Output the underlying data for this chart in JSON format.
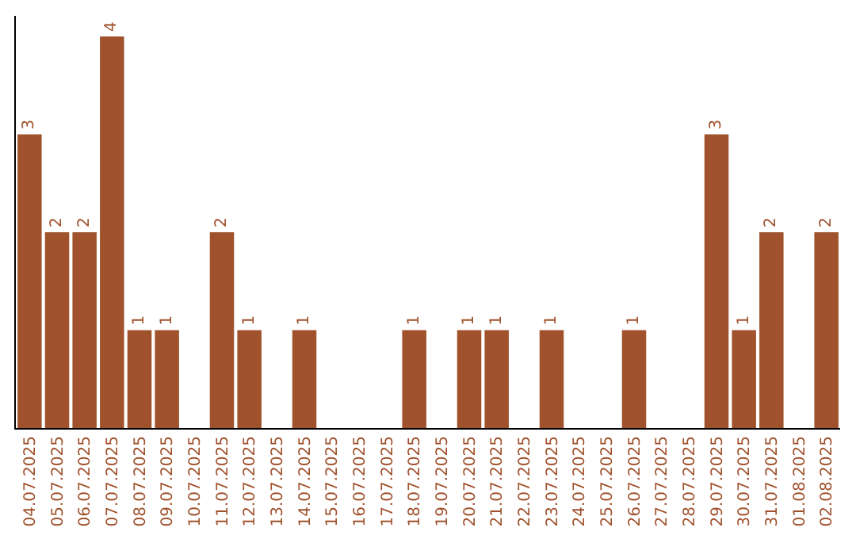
{
  "chart_data": {
    "type": "bar",
    "categories": [
      "04.07.2025",
      "05.07.2025",
      "06.07.2025",
      "07.07.2025",
      "08.07.2025",
      "09.07.2025",
      "10.07.2025",
      "11.07.2025",
      "12.07.2025",
      "13.07.2025",
      "14.07.2025",
      "15.07.2025",
      "16.07.2025",
      "17.07.2025",
      "18.07.2025",
      "19.07.2025",
      "20.07.2025",
      "21.07.2025",
      "22.07.2025",
      "23.07.2025",
      "24.07.2025",
      "25.07.2025",
      "26.07.2025",
      "27.07.2025",
      "28.07.2025",
      "29.07.2025",
      "30.07.2025",
      "31.07.2025",
      "01.08.2025",
      "02.08.2025"
    ],
    "values": [
      3,
      2,
      2,
      4,
      1,
      1,
      0,
      2,
      1,
      0,
      1,
      0,
      0,
      0,
      1,
      0,
      1,
      1,
      0,
      1,
      0,
      0,
      1,
      0,
      0,
      3,
      1,
      2,
      0,
      2
    ],
    "value_labels": [
      "3",
      "2",
      "2",
      "4",
      "1",
      "1",
      null,
      "2",
      "1",
      null,
      "1",
      null,
      null,
      null,
      "1",
      null,
      "1",
      "1",
      null,
      "1",
      null,
      null,
      "1",
      null,
      null,
      "3",
      "1",
      "2",
      null,
      "2"
    ],
    "color": "#a0522d",
    "grid": false,
    "legend": false
  }
}
